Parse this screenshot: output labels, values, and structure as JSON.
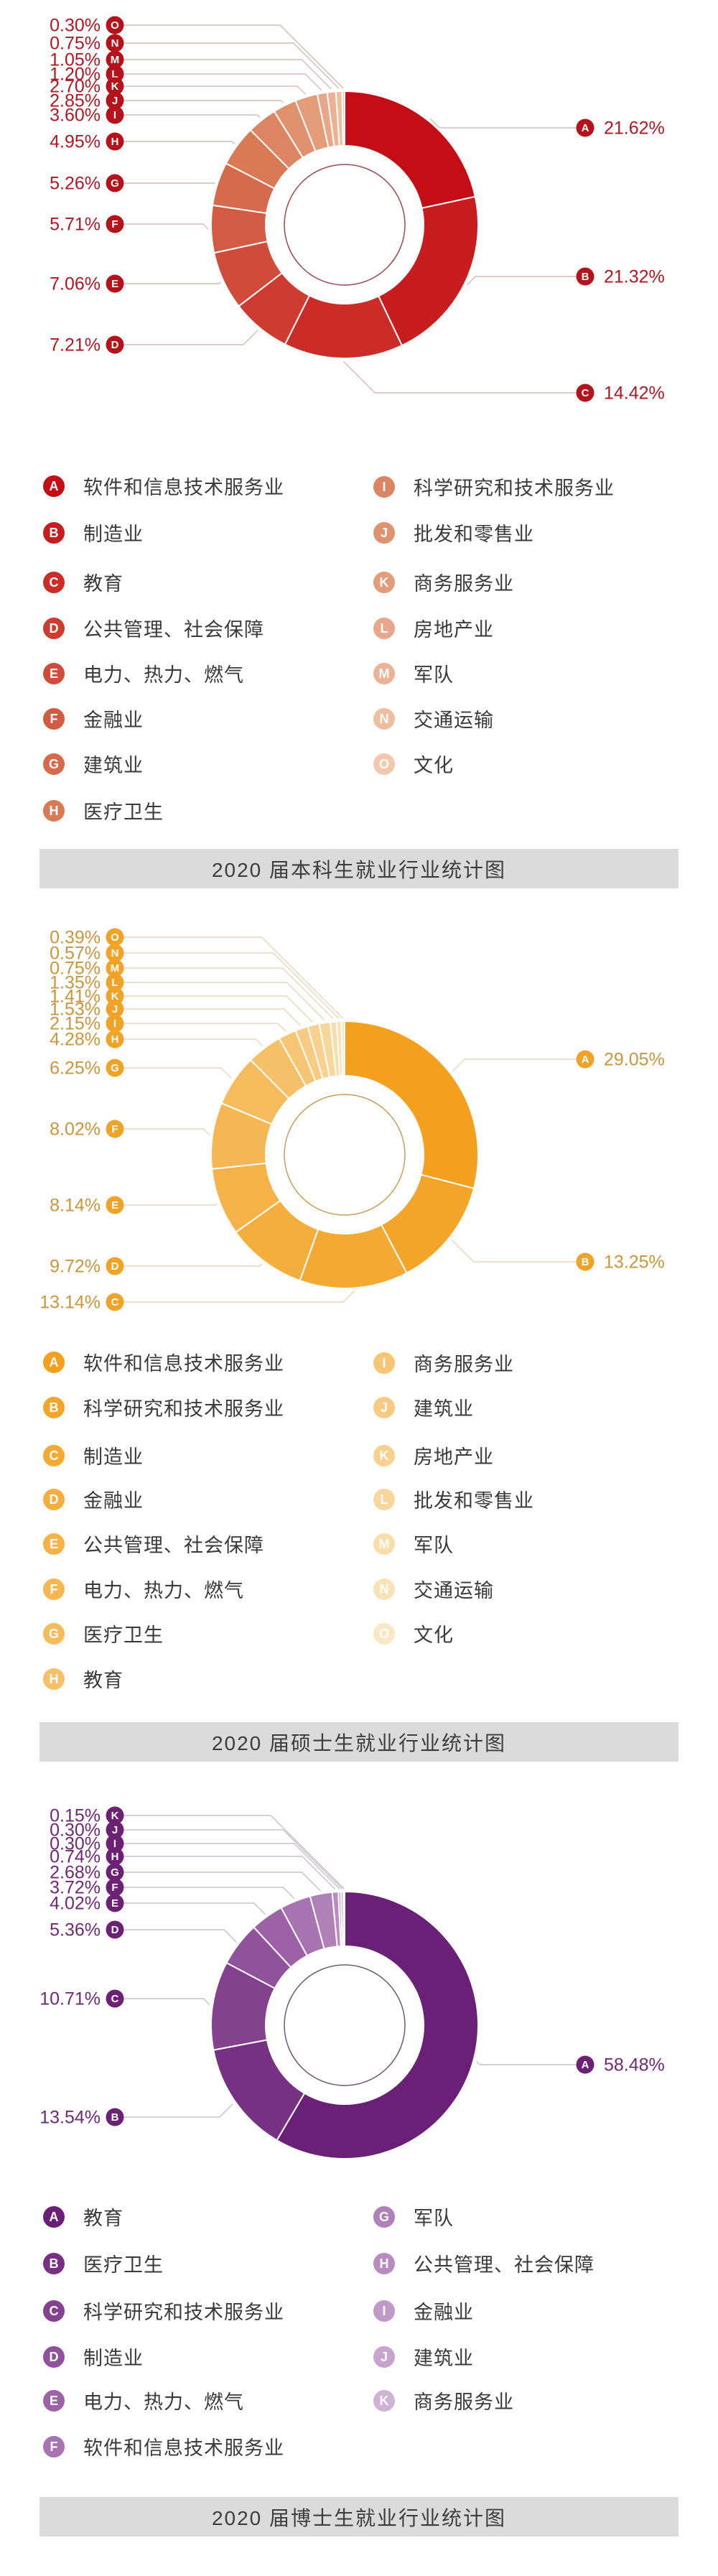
{
  "page": {
    "background": "#ffffff"
  },
  "chart_data": [
    {
      "type": "pie",
      "variant": "donut",
      "title": "2020 届本科生就业行业统计图",
      "value_suffix": "%",
      "legend_position": "below",
      "letters": [
        "A",
        "B",
        "C",
        "D",
        "E",
        "F",
        "G",
        "H",
        "I",
        "J",
        "K",
        "L",
        "M",
        "N",
        "O"
      ],
      "categories": [
        "软件和信息技术服务业",
        "制造业",
        "教育",
        "公共管理、社会保障",
        "电力、热力、燃气",
        "金融业",
        "建筑业",
        "医疗卫生",
        "科学研究和技术服务业",
        "批发和零售业",
        "商务服务业",
        "房地产业",
        "军队",
        "交通运输",
        "文化"
      ],
      "values": [
        21.62,
        21.32,
        14.42,
        7.21,
        7.06,
        5.71,
        5.26,
        4.95,
        3.6,
        2.85,
        2.7,
        1.2,
        1.05,
        0.75,
        0.3
      ],
      "colors": {
        "gradient_start": "#c50d16",
        "gradient_mid": "#d97a55",
        "gradient_end": "#f2c9ae",
        "callout_badge": "#b5121c",
        "percent_text": "#b01823",
        "leader_line": "#d5bcb8",
        "inner_ring": "#8e2a2e",
        "title_bar_bg": "#dbdbdb",
        "title_text": "#3d3d3d"
      }
    },
    {
      "type": "pie",
      "variant": "donut",
      "title": "2020 届硕士生就业行业统计图",
      "value_suffix": "%",
      "legend_position": "below",
      "letters": [
        "A",
        "B",
        "C",
        "D",
        "E",
        "F",
        "G",
        "H",
        "I",
        "J",
        "K",
        "L",
        "M",
        "N",
        "O"
      ],
      "categories": [
        "软件和信息技术服务业",
        "科学研究和技术服务业",
        "制造业",
        "金融业",
        "公共管理、社会保障",
        "电力、热力、燃气",
        "医疗卫生",
        "教育",
        "商务服务业",
        "建筑业",
        "房地产业",
        "批发和零售业",
        "军队",
        "交通运输",
        "文化"
      ],
      "values": [
        29.05,
        13.25,
        13.14,
        9.72,
        8.14,
        8.02,
        6.25,
        4.28,
        2.15,
        1.53,
        1.41,
        1.35,
        0.75,
        0.57,
        0.39
      ],
      "colors": {
        "gradient_start": "#f3a01e",
        "gradient_mid": "#f6c068",
        "gradient_end": "#fae8c4",
        "callout_badge": "#f0a327",
        "percent_text": "#c9953d",
        "leader_line": "#e8d7ba",
        "inner_ring": "#c08c3e",
        "title_bar_bg": "#dbdbdb",
        "title_text": "#3d3d3d"
      }
    },
    {
      "type": "pie",
      "variant": "donut",
      "title": "2020 届博士生就业行业统计图",
      "value_suffix": "%",
      "legend_position": "below",
      "letters": [
        "A",
        "B",
        "C",
        "D",
        "E",
        "F",
        "G",
        "H",
        "I",
        "J",
        "K"
      ],
      "categories": [
        "教育",
        "医疗卫生",
        "科学研究和技术服务业",
        "制造业",
        "电力、热力、燃气",
        "软件和信息技术服务业",
        "军队",
        "公共管理、社会保障",
        "金融业",
        "建筑业",
        "商务服务业"
      ],
      "values": [
        58.48,
        13.54,
        10.71,
        5.36,
        4.02,
        3.72,
        2.68,
        0.74,
        0.3,
        0.3,
        0.15
      ],
      "colors": {
        "gradient_start": "#6b2077",
        "gradient_mid": "#a873b1",
        "gradient_end": "#cfb2d5",
        "callout_badge": "#6c2175",
        "percent_text": "#6e2a75",
        "leader_line": "#c9c0cb",
        "inner_ring": "#5a3b60",
        "title_bar_bg": "#dbdbdb",
        "title_text": "#3d3d3d"
      }
    }
  ]
}
